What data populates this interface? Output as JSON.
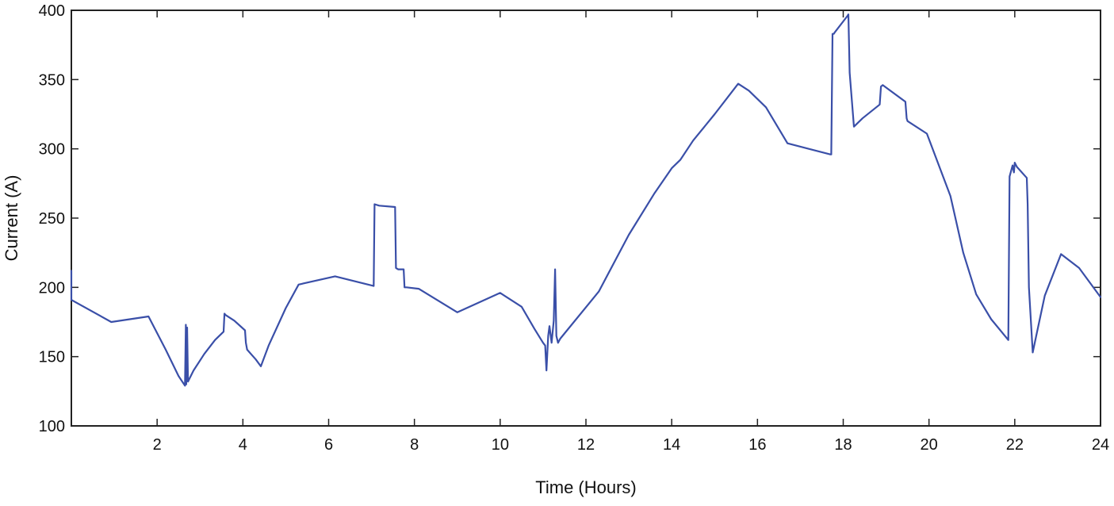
{
  "chart_data": {
    "type": "line",
    "xlabel": "Time (Hours)",
    "ylabel": "Current (A)",
    "xlim": [
      0,
      24
    ],
    "ylim": [
      100,
      400
    ],
    "xticks": [
      2,
      4,
      6,
      8,
      10,
      12,
      14,
      16,
      18,
      20,
      22,
      24
    ],
    "yticks": [
      100,
      150,
      200,
      250,
      300,
      350,
      400
    ],
    "grid": false,
    "colors": {
      "line": "#3a4fa8",
      "axes": "#222222"
    },
    "series": [
      {
        "x": [
          0,
          0,
          0.93,
          1.8,
          2.2,
          2.5,
          2.65,
          2.67,
          2.68,
          2.7,
          2.72,
          2.85,
          3.1,
          3.35,
          3.55,
          3.57,
          3.6,
          3.8,
          4.05,
          4.07,
          4.1,
          4.3,
          4.42,
          4.6,
          5.0,
          5.3,
          6.15,
          7.05,
          7.07,
          7.18,
          7.55,
          7.57,
          7.62,
          7.75,
          7.77,
          7.82,
          8.1,
          9.0,
          9.5,
          10.0,
          10.5,
          10.8,
          11.0,
          11.05,
          11.08,
          11.12,
          11.15,
          11.2,
          11.25,
          11.28,
          11.31,
          11.35,
          11.4,
          12.3,
          13.0,
          13.6,
          14.0,
          14.2,
          14.5,
          15.0,
          15.55,
          15.8,
          16.2,
          16.7,
          17.7,
          17.72,
          17.75,
          17.78,
          17.8,
          18.1,
          18.12,
          18.15,
          18.25,
          18.45,
          18.85,
          18.88,
          18.92,
          19.45,
          19.48,
          19.5,
          19.95,
          20.5,
          20.8,
          21.1,
          21.45,
          21.85,
          21.88,
          21.95,
          21.98,
          22.0,
          22.05,
          22.28,
          22.3,
          22.33,
          22.42,
          22.5,
          22.7,
          23.08,
          23.5,
          24.0
        ],
        "y": [
          212,
          191,
          175,
          179,
          155,
          136,
          129,
          173,
          130,
          171,
          132,
          140,
          152,
          162,
          168,
          181,
          180,
          176,
          169,
          160,
          155,
          148,
          143,
          158,
          185,
          202,
          208,
          201,
          260,
          259,
          258,
          214,
          213,
          213,
          200,
          200,
          199,
          182,
          189,
          196,
          186,
          170,
          160,
          158,
          140,
          165,
          172,
          160,
          176,
          213,
          165,
          160,
          163,
          197,
          238,
          268,
          286,
          292,
          306,
          325,
          347,
          342,
          330,
          304,
          296,
          296,
          383,
          383,
          384,
          396,
          397,
          355,
          316,
          322,
          332,
          345,
          346,
          334,
          322,
          320,
          311,
          266,
          225,
          195,
          177,
          162,
          280,
          288,
          283,
          290,
          287,
          279,
          260,
          200,
          153,
          165,
          194,
          224,
          214,
          193
        ]
      }
    ]
  }
}
